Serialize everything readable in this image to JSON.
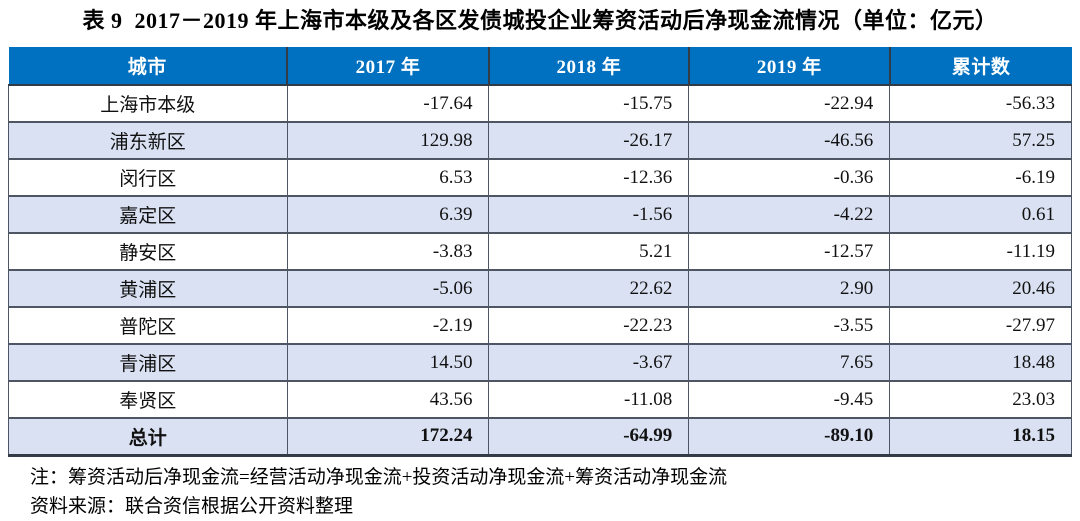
{
  "title": "表 9  2017－2019 年上海市本级及各区发债城投企业筹资活动后净现金流情况（单位：亿元）",
  "table": {
    "columns": [
      "城市",
      "2017 年",
      "2018 年",
      "2019 年",
      "累计数"
    ],
    "rows": [
      {
        "city": "上海市本级",
        "values": [
          "-17.64",
          "-15.75",
          "-22.94",
          "-56.33"
        ]
      },
      {
        "city": "浦东新区",
        "values": [
          "129.98",
          "-26.17",
          "-46.56",
          "57.25"
        ]
      },
      {
        "city": "闵行区",
        "values": [
          "6.53",
          "-12.36",
          "-0.36",
          "-6.19"
        ]
      },
      {
        "city": "嘉定区",
        "values": [
          "6.39",
          "-1.56",
          "-4.22",
          "0.61"
        ]
      },
      {
        "city": "静安区",
        "values": [
          "-3.83",
          "5.21",
          "-12.57",
          "-11.19"
        ]
      },
      {
        "city": "黄浦区",
        "values": [
          "-5.06",
          "22.62",
          "2.90",
          "20.46"
        ]
      },
      {
        "city": "普陀区",
        "values": [
          "-2.19",
          "-22.23",
          "-3.55",
          "-27.97"
        ]
      },
      {
        "city": "青浦区",
        "values": [
          "14.50",
          "-3.67",
          "7.65",
          "18.48"
        ]
      },
      {
        "city": "奉贤区",
        "values": [
          "43.56",
          "-11.08",
          "-9.45",
          "23.03"
        ]
      }
    ],
    "total_row": {
      "city": "总计",
      "values": [
        "172.24",
        "-64.99",
        "-89.10",
        "18.15"
      ]
    }
  },
  "notes": {
    "note": "注：筹资活动后净现金流=经营活动净现金流+投资活动净现金流+筹资活动净现金流",
    "source": "资料来源：联合资信根据公开资料整理"
  },
  "colors": {
    "header_bg": "#0070C0",
    "header_text": "#FFFFFF",
    "shaded_row": "#D9E1F2"
  }
}
